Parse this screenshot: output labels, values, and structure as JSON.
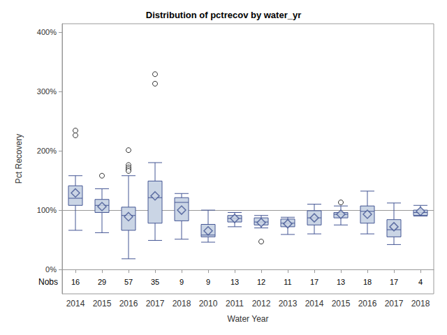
{
  "chart_data": {
    "type": "boxplot",
    "title": "Distribution of pctrecov by water_yr",
    "x_label": "Water Year",
    "y_label": "Pct Recovery",
    "categories": [
      "2014",
      "2015",
      "2016",
      "2017",
      "2018",
      "2010",
      "2011",
      "2012",
      "2013",
      "2014",
      "2015",
      "2016",
      "2017",
      "2018"
    ],
    "boxes": [
      {
        "min": 66,
        "q1": 108,
        "median": 120,
        "q3": 141,
        "max": 158,
        "mean": 129,
        "outliers": [
          226,
          234
        ]
      },
      {
        "min": 62,
        "q1": 96,
        "median": 108,
        "q3": 118,
        "max": 136,
        "mean": 106,
        "outliers": [
          158
        ]
      },
      {
        "min": 18,
        "q1": 66,
        "median": 91,
        "q3": 105,
        "max": 158,
        "mean": 89,
        "outliers": [
          201,
          176,
          172,
          169,
          166
        ]
      },
      {
        "min": 49,
        "q1": 78,
        "median": 121,
        "q3": 149,
        "max": 180,
        "mean": 124,
        "outliers": [
          313,
          329
        ]
      },
      {
        "min": 51,
        "q1": 82,
        "median": 113,
        "q3": 121,
        "max": 128,
        "mean": 100,
        "outliers": []
      },
      {
        "min": 46,
        "q1": 55,
        "median": 58,
        "q3": 76,
        "max": 100,
        "mean": 65,
        "outliers": []
      },
      {
        "min": 72,
        "q1": 80,
        "median": 86,
        "q3": 91,
        "max": 96,
        "mean": 86,
        "outliers": []
      },
      {
        "min": 70,
        "q1": 75,
        "median": 80,
        "q3": 87,
        "max": 91,
        "mean": 79,
        "outliers": [
          47
        ]
      },
      {
        "min": 59,
        "q1": 72,
        "median": 78,
        "q3": 85,
        "max": 88,
        "mean": 77,
        "outliers": []
      },
      {
        "min": 60,
        "q1": 75,
        "median": 87,
        "q3": 99,
        "max": 110,
        "mean": 87,
        "outliers": []
      },
      {
        "min": 75,
        "q1": 87,
        "median": 93,
        "q3": 96,
        "max": 107,
        "mean": 93,
        "outliers": [
          113
        ]
      },
      {
        "min": 60,
        "q1": 78,
        "median": 98,
        "q3": 107,
        "max": 132,
        "mean": 93,
        "outliers": []
      },
      {
        "min": 42,
        "q1": 55,
        "median": 67,
        "q3": 84,
        "max": 112,
        "mean": 72,
        "outliers": []
      },
      {
        "min": 90,
        "q1": 91,
        "median": 96,
        "q3": 100,
        "max": 108,
        "mean": 98,
        "outliers": []
      }
    ],
    "nobs_label": "Nobs",
    "nobs": [
      16,
      29,
      57,
      35,
      9,
      9,
      13,
      12,
      11,
      17,
      13,
      18,
      17,
      4
    ],
    "reference_line": 100,
    "color": "#cad5e5",
    "ylim": [
      -41,
      414
    ],
    "yticks": [
      {
        "value": 0,
        "label": "0%"
      },
      {
        "value": 100,
        "label": "100%"
      },
      {
        "value": 200,
        "label": "200%"
      },
      {
        "value": 300,
        "label": "300%"
      },
      {
        "value": 400,
        "label": "400%"
      }
    ],
    "grid": false
  }
}
